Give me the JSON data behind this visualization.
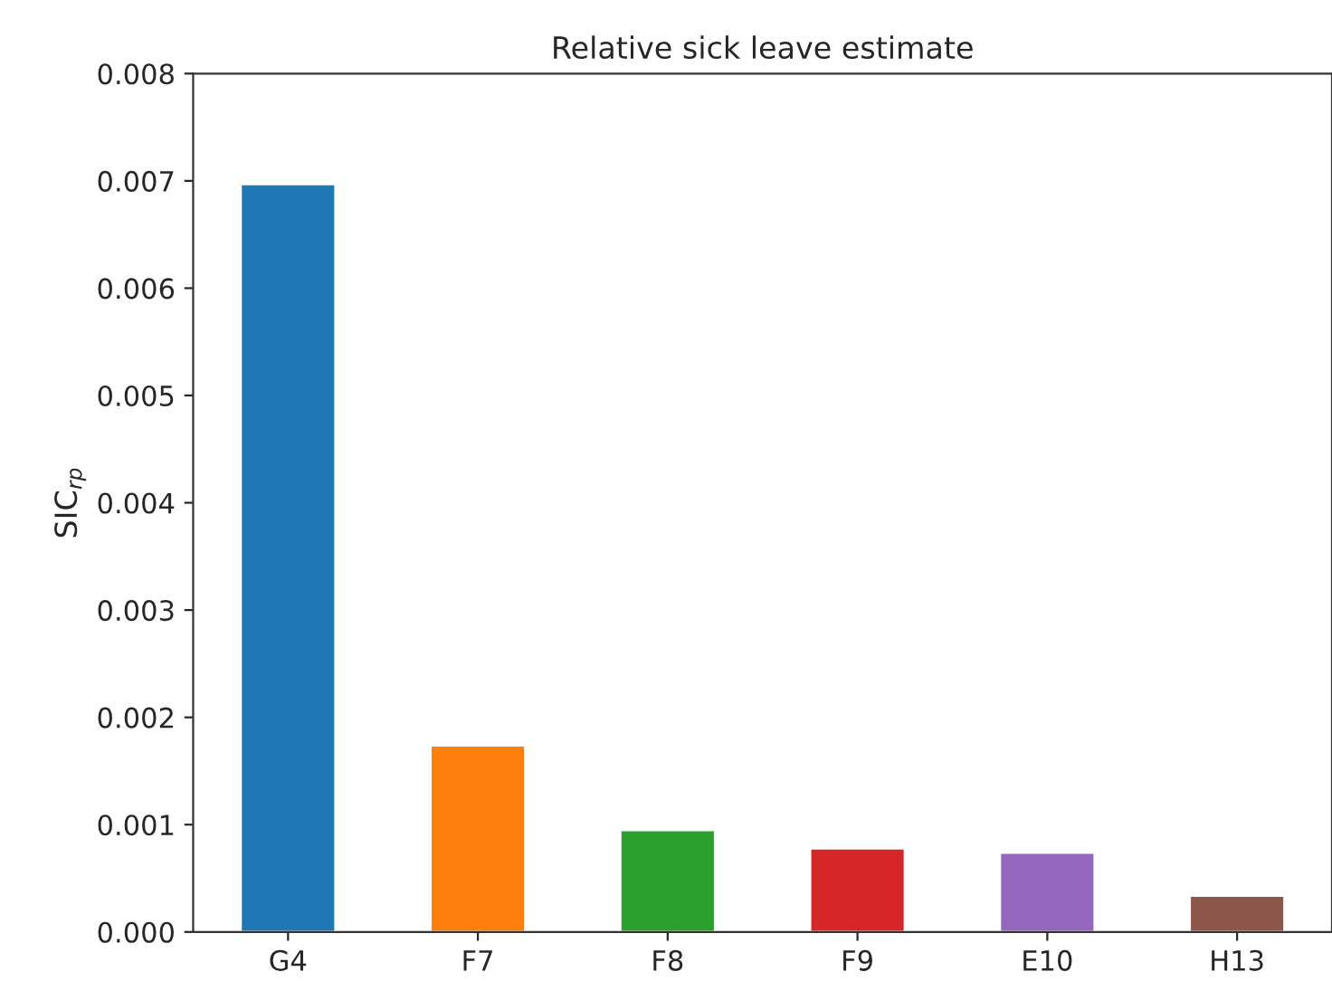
{
  "chart_data": {
    "type": "bar",
    "title": "Relative sick leave estimate",
    "ylabel": "SIC$_{rp}$",
    "categories": [
      "G4",
      "F7",
      "F8",
      "F9",
      "E10",
      "H13"
    ],
    "values": [
      0.00697,
      0.00174,
      0.00095,
      0.00078,
      0.00074,
      0.00034
    ],
    "colors": [
      "#1f77b4",
      "#ff7f0e",
      "#2ca02c",
      "#d62728",
      "#9467bd",
      "#8c564b"
    ],
    "ylim": [
      0,
      0.008
    ],
    "yticks": [
      {
        "value": 0,
        "label": "0.000"
      },
      0.001,
      0.002,
      0.003,
      0.004,
      0.005,
      0.006,
      0.007,
      0.008
    ],
    "grid": false,
    "legend": false
  }
}
